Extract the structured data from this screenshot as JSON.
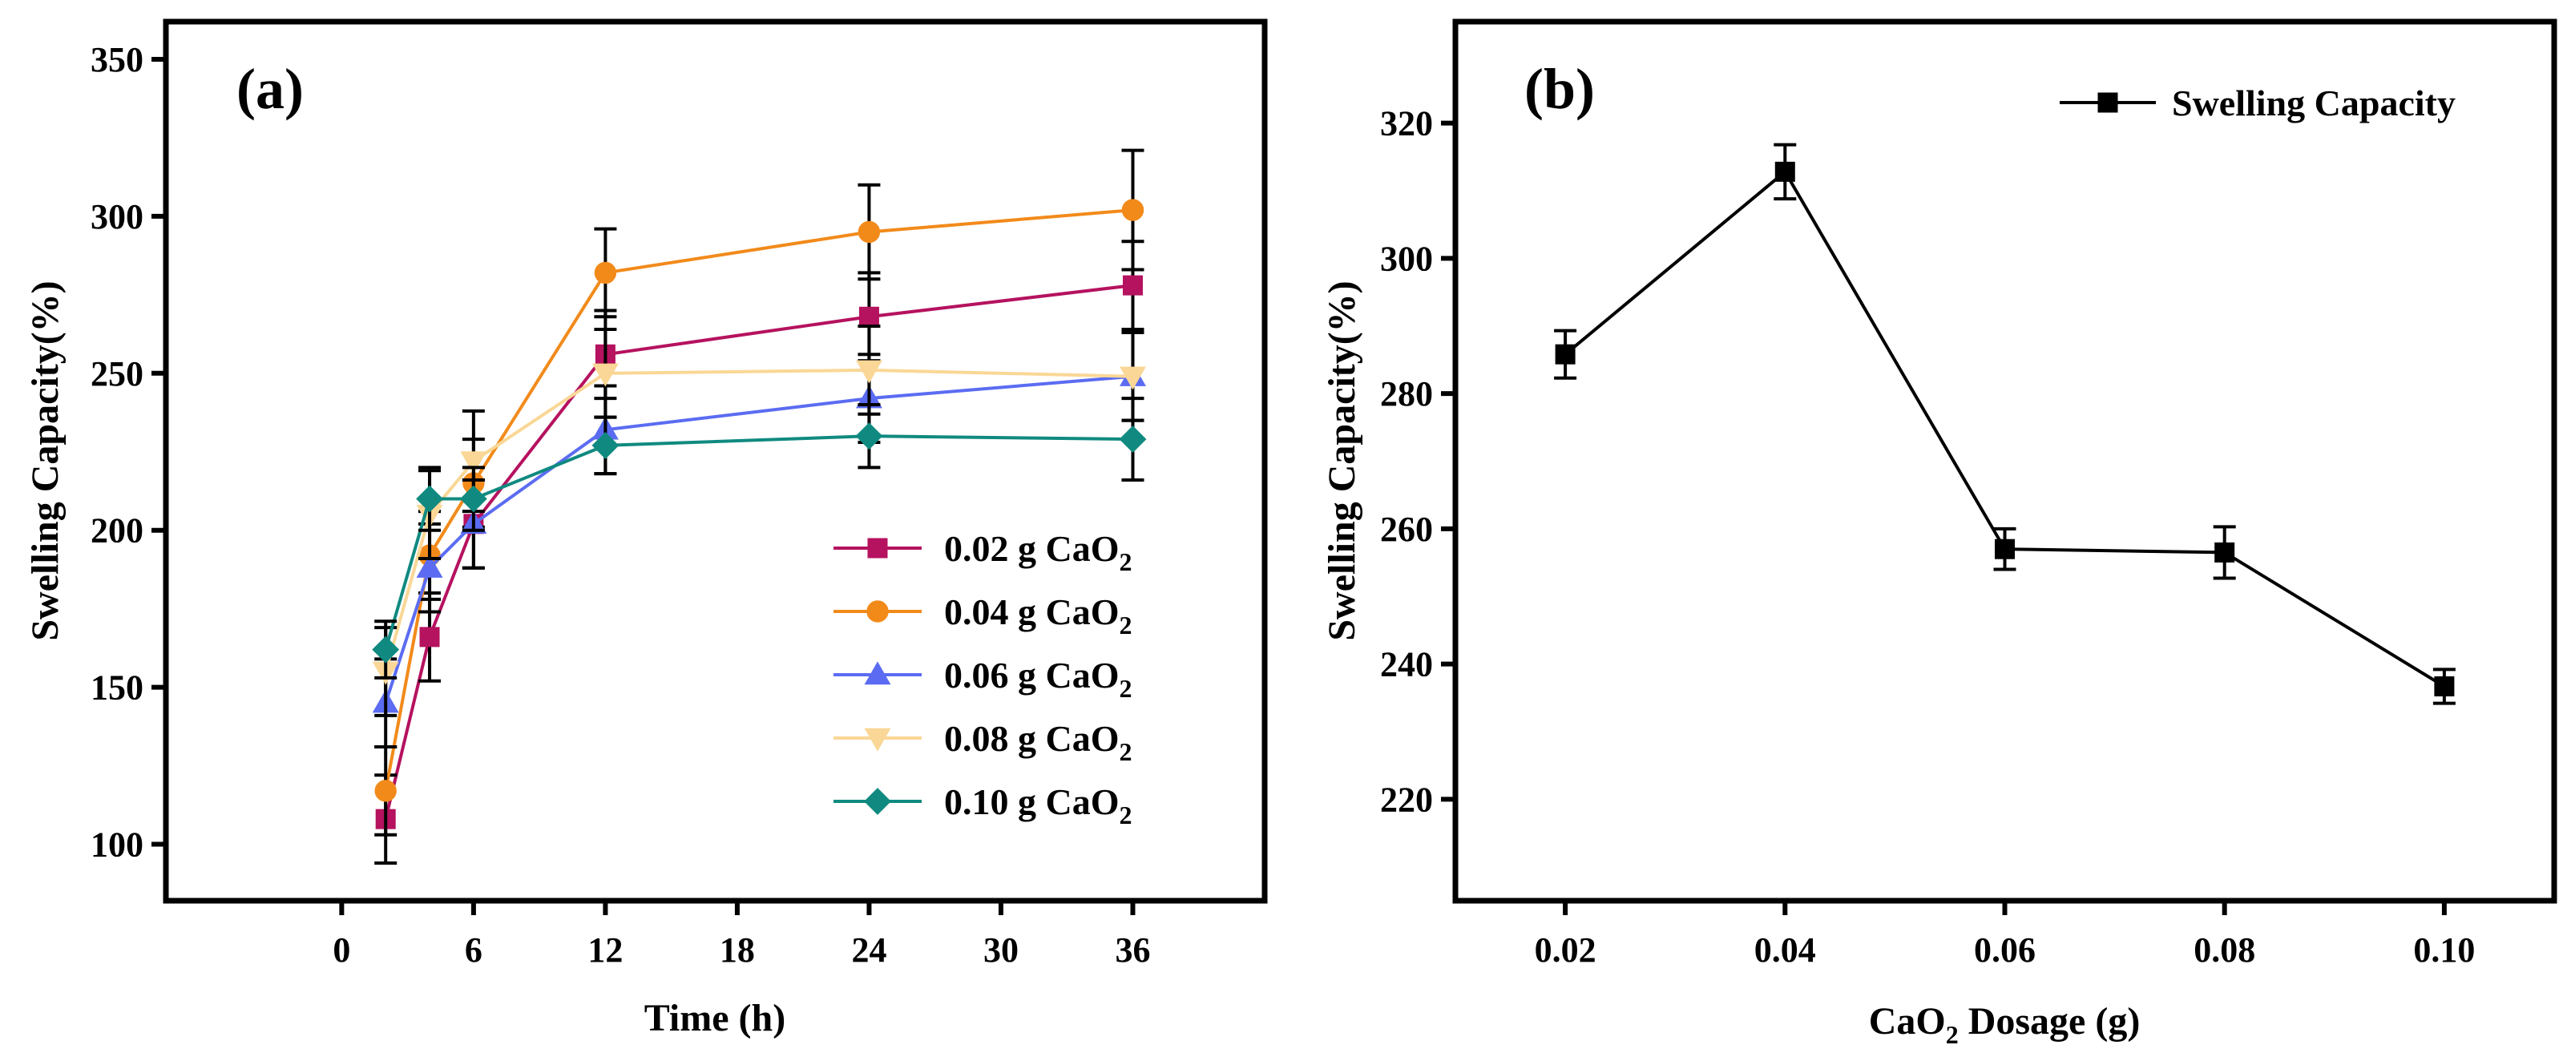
{
  "chart_data": [
    {
      "type": "line",
      "panel_label": "(a)",
      "xlabel": "Time (h)",
      "ylabel": "Swelling Capacity(%)",
      "xlim": [
        -8,
        42
      ],
      "ylim": [
        82,
        362
      ],
      "x_ticks": [
        "0",
        "6",
        "12",
        "18",
        "24",
        "30",
        "36"
      ],
      "x_tick_values": [
        0,
        6,
        12,
        18,
        24,
        30,
        36
      ],
      "y_ticks": [
        "100",
        "150",
        "200",
        "250",
        "300",
        "350"
      ],
      "y_tick_values": [
        100,
        150,
        200,
        250,
        300,
        350
      ],
      "x": [
        2,
        4,
        6,
        12,
        24,
        36
      ],
      "legend_position": "bottom-right",
      "series": [
        {
          "name": "0.02 g CaO",
          "name_sub": "2",
          "color": "#b5125f",
          "marker": "square",
          "values": [
            108,
            166,
            202,
            256,
            268,
            278
          ],
          "errors": [
            14,
            14,
            14,
            14,
            14,
            14
          ]
        },
        {
          "name": "0.04 g CaO",
          "name_sub": "2",
          "color": "#f28a1a",
          "marker": "circle",
          "values": [
            117,
            192,
            215,
            282,
            295,
            302
          ],
          "errors": [
            14,
            14,
            14,
            14,
            15,
            19
          ]
        },
        {
          "name": "0.06 g CaO",
          "name_sub": "2",
          "color": "#5b6cf2",
          "marker": "triangle-up",
          "values": [
            145,
            188,
            202,
            232,
            242,
            249
          ],
          "errors": [
            14,
            14,
            14,
            14,
            14,
            14
          ]
        },
        {
          "name": "0.08 g CaO",
          "name_sub": "2",
          "color": "#fad796",
          "marker": "triangle-down",
          "values": [
            155,
            205,
            222,
            250,
            251,
            249
          ],
          "errors": [
            14,
            14,
            16,
            14,
            14,
            14
          ]
        },
        {
          "name": "0.10 g CaO",
          "name_sub": "2",
          "color": "#108a80",
          "marker": "diamond",
          "values": [
            162,
            210,
            210,
            227,
            230,
            229
          ],
          "errors": [
            9,
            10,
            10,
            9,
            10,
            13
          ]
        }
      ]
    },
    {
      "type": "line",
      "panel_label": "(b)",
      "xlabel_prefix": "CaO",
      "xlabel_sub": "2",
      "xlabel_suffix": " Dosage (g)",
      "ylabel": "Swelling Capacity(%)",
      "xlim": [
        0.01,
        0.11
      ],
      "ylim": [
        205,
        335
      ],
      "x_ticks": [
        "0.02",
        "0.04",
        "0.06",
        "0.08",
        "0.10"
      ],
      "x_tick_values": [
        0.02,
        0.04,
        0.06,
        0.08,
        0.1
      ],
      "y_ticks": [
        "220",
        "240",
        "260",
        "280",
        "300",
        "320"
      ],
      "y_tick_values": [
        220,
        240,
        260,
        280,
        300,
        320
      ],
      "legend_position": "top-right",
      "series": [
        {
          "name": "Swelling Capacity",
          "color": "#000000",
          "marker": "square",
          "x": [
            0.02,
            0.04,
            0.06,
            0.08,
            0.1
          ],
          "values": [
            285.8,
            312.8,
            257.0,
            256.5,
            236.7
          ],
          "errors": [
            3.5,
            4.0,
            3.0,
            3.8,
            2.5
          ]
        }
      ]
    }
  ]
}
